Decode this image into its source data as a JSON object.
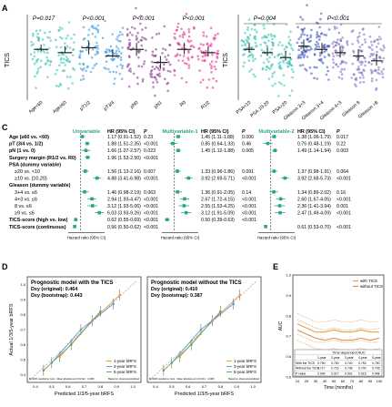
{
  "panel_letters": {
    "a": "A",
    "c": "C",
    "d": "D",
    "e": "E"
  },
  "panelA": {
    "left": {
      "ylabel": "TICS",
      "pvalues": [
        "P=0.017",
        "P<0.001",
        "P<0.001",
        "P<0.001"
      ],
      "groups": [
        {
          "label": "Age<60",
          "color": "#2bbdb0",
          "values": [
            0.25,
            0.3,
            0.45
          ]
        },
        {
          "label": "Age≥60",
          "color": "#2bbdb0",
          "values": [
            0.2,
            0.2,
            0.4
          ]
        },
        {
          "label": "pT1/2",
          "color": "#2d8fd8",
          "values": [
            0.15,
            0.35,
            0.55
          ]
        },
        {
          "label": "pT3/4",
          "color": "#2d8fd8",
          "values": [
            0.05,
            0.1,
            0.3
          ]
        },
        {
          "label": "pN0",
          "color": "#7b2a86",
          "values": [
            0.1,
            0.3,
            0.5
          ]
        },
        {
          "label": "pN1",
          "color": "#7b2a86",
          "values": [
            -0.3,
            -0.1,
            0.1
          ]
        },
        {
          "label": "R0",
          "color": "#e0208a",
          "values": [
            0.15,
            0.3,
            0.5
          ]
        },
        {
          "label": "R1/2",
          "color": "#e0208a",
          "values": [
            0.1,
            0.2,
            0.4
          ]
        }
      ]
    },
    "right": {
      "ylabel": "TICS",
      "pvalues": [
        "P=0.004",
        "P<0.001"
      ],
      "groups": [
        {
          "label": "PSA<10",
          "color": "#2bbdb0",
          "values": [
            0.2,
            0.3,
            0.5
          ]
        },
        {
          "label": "PSA 10-20",
          "color": "#2bbdb0",
          "values": [
            0.1,
            0.2,
            0.35
          ]
        },
        {
          "label": "PSA>20",
          "color": "#2bbdb0",
          "values": [
            -0.05,
            0.05,
            0.25
          ]
        },
        {
          "label": "Gleason 3+3",
          "color": "#3048b8",
          "values": [
            0.25,
            0.4,
            0.6
          ]
        },
        {
          "label": "Gleason 3+4",
          "color": "#3048b8",
          "values": [
            0.15,
            0.3,
            0.5
          ]
        },
        {
          "label": "Gleason 4+3",
          "color": "#7a62c0",
          "values": [
            0.05,
            0.2,
            0.4
          ]
        },
        {
          "label": "Gleason 8",
          "color": "#7a62c0",
          "values": [
            -0.05,
            0.1,
            0.3
          ]
        },
        {
          "label": "Gleason >8",
          "color": "#7a62c0",
          "values": [
            -0.2,
            -0.05,
            0.15
          ]
        }
      ]
    }
  },
  "panelC": {
    "variables": [
      {
        "label": "Age (≥60 vs. <60)",
        "bold": true,
        "indent": false
      },
      {
        "label": "pT (3/4 vs. 1/2)",
        "bold": true,
        "indent": false
      },
      {
        "label": "pN (1 vs. 0)",
        "bold": true,
        "indent": false
      },
      {
        "label": "Surgery margin (R1/2 vs. R0)",
        "bold": true,
        "indent": false
      },
      {
        "label": "PSA (dummy variable)",
        "bold": true,
        "indent": false
      },
      {
        "label": "≥20 vs. <10",
        "bold": false,
        "indent": true
      },
      {
        "label": "≥10 vs. [10,20)",
        "bold": false,
        "indent": true
      },
      {
        "label": "Gleason (dummy variable)",
        "bold": true,
        "indent": false
      },
      {
        "label": "3+4 vs. ≤6",
        "bold": false,
        "indent": true
      },
      {
        "label": "4+3 vs. ≤6",
        "bold": false,
        "indent": true
      },
      {
        "label": "8 vs. ≤6",
        "bold": false,
        "indent": true
      },
      {
        "label": "≥9 vs. ≤6",
        "bold": false,
        "indent": true
      },
      {
        "label": "TICS-score (high vs. low)",
        "bold": true,
        "indent": false
      },
      {
        "label": "TICS-score (continuous)",
        "bold": true,
        "indent": false
      }
    ],
    "models": [
      {
        "title": "Univariable",
        "color": "#2aa58a",
        "hr_header": "HR (95% CI)",
        "p_header": "P",
        "axis_label": "Hazard ratio (95% CI)",
        "rows": [
          {
            "hr": "1.17 (0.91-1.52)",
            "p": "0.23",
            "est": 1.17,
            "lo": 0.91,
            "hi": 1.52
          },
          {
            "hr": "1.88 (1.51-2.35)",
            "p": "<0.001",
            "est": 1.88,
            "lo": 1.51,
            "hi": 2.35
          },
          {
            "hr": "1.66 (1.07-2.57)",
            "p": "0.023",
            "est": 1.66,
            "lo": 1.07,
            "hi": 2.57
          },
          {
            "hr": "1.96 (1.53-2.50)",
            "p": "<0.001",
            "est": 1.96,
            "lo": 1.53,
            "hi": 2.5
          },
          null,
          {
            "hr": "1.56 (1.13-2.16)",
            "p": "0.007",
            "est": 1.56,
            "lo": 1.13,
            "hi": 2.16
          },
          {
            "hr": "4.88 (3.41-6.98)",
            "p": "<0.001",
            "est": 4.88,
            "lo": 3.41,
            "hi": 6.98
          },
          null,
          {
            "hr": "1.46 (0.98-2.19)",
            "p": "0.063",
            "est": 1.46,
            "lo": 0.98,
            "hi": 2.19
          },
          {
            "hr": "2.94 (1.93-4.47)",
            "p": "<0.001",
            "est": 2.94,
            "lo": 1.93,
            "hi": 4.47
          },
          {
            "hr": "3.12 (1.93-5.06)",
            "p": "<0.001",
            "est": 3.12,
            "lo": 1.93,
            "hi": 5.06
          },
          {
            "hr": "6.03 (3.93-9.26)",
            "p": "<0.001",
            "est": 6.03,
            "lo": 3.93,
            "hi": 9.26
          },
          {
            "hr": "0.62 (0.55-0.69)",
            "p": "<0.001",
            "est": 0.62,
            "lo": 0.55,
            "hi": 0.69
          },
          {
            "hr": "0.56 (0.50-0.62)",
            "p": "<0.001",
            "est": 0.56,
            "lo": 0.5,
            "hi": 0.62
          }
        ]
      },
      {
        "title": "Multivariable-1",
        "color": "#2aa58a",
        "hr_header": "HR (95% CI)",
        "p_header": "P",
        "axis_label": "Hazard ratio (95% CI)",
        "rows": [
          {
            "hr": "1.45 (1.11-1.88)",
            "p": "0.006",
            "est": 1.45,
            "lo": 1.11,
            "hi": 1.88
          },
          {
            "hr": "0.85 (0.64-1.33)",
            "p": "0.46",
            "est": 0.85,
            "lo": 0.64,
            "hi": 1.33
          },
          {
            "hr": "1.45 (1.12-1.88)",
            "p": "0.005",
            "est": 1.45,
            "lo": 1.12,
            "hi": 1.88
          },
          null,
          null,
          {
            "hr": "1.33 (0.96-1.86)",
            "p": "0.091",
            "est": 1.33,
            "lo": 0.96,
            "hi": 1.86
          },
          {
            "hr": "3.92 (2.69-5.71)",
            "p": "<0.001",
            "est": 3.92,
            "lo": 2.69,
            "hi": 5.71
          },
          null,
          {
            "hr": "1.36 (0.91-2.05)",
            "p": "0.14",
            "est": 1.36,
            "lo": 0.91,
            "hi": 2.05
          },
          {
            "hr": "2.67 (1.72-4.15)",
            "p": "<0.001",
            "est": 2.67,
            "lo": 1.72,
            "hi": 4.15
          },
          {
            "hr": "2.55 (1.53-4.25)",
            "p": "<0.001",
            "est": 2.55,
            "lo": 1.53,
            "hi": 4.25
          },
          {
            "hr": "3.12 (1.91-5.09)",
            "p": "<0.001",
            "est": 3.12,
            "lo": 1.91,
            "hi": 5.09
          },
          {
            "hr": "0.50 (0.39-0.63)",
            "p": "<0.001",
            "est": 0.5,
            "lo": 0.39,
            "hi": 0.63
          },
          null
        ]
      },
      {
        "title": "Multivariable-2",
        "color": "#2aa58a",
        "hr_header": "HR (95% CI)",
        "p_header": "P",
        "axis_label": "Hazard ratio (95% CI)",
        "rows": [
          {
            "hr": "1.38 (1.06-1.79)",
            "p": "0.017",
            "est": 1.38,
            "lo": 1.06,
            "hi": 1.79
          },
          {
            "hr": "0.75 (0.48-1.19)",
            "p": "0.22",
            "est": 0.75,
            "lo": 0.48,
            "hi": 1.19
          },
          {
            "hr": "1.49 (1.14-1.94)",
            "p": "0.003",
            "est": 1.49,
            "lo": 1.14,
            "hi": 1.94
          },
          null,
          null,
          {
            "hr": "1.37 (0.98-1.91)",
            "p": "0.064",
            "est": 1.37,
            "lo": 0.98,
            "hi": 1.91
          },
          {
            "hr": "3.92 (2.68-5.73)",
            "p": "<0.001",
            "est": 3.92,
            "lo": 2.68,
            "hi": 5.73
          },
          null,
          {
            "hr": "1.34 (0.89-2.02)",
            "p": "0.16",
            "est": 1.34,
            "lo": 0.89,
            "hi": 2.02
          },
          {
            "hr": "2.60 (1.67-4.05)",
            "p": "<0.001",
            "est": 2.6,
            "lo": 1.67,
            "hi": 4.05
          },
          {
            "hr": "2.36 (1.41-3.94)",
            "p": "0.001",
            "est": 2.36,
            "lo": 1.41,
            "hi": 3.94
          },
          {
            "hr": "2.47 (1.49-4.09)",
            "p": "<0.001",
            "est": 2.47,
            "lo": 1.49,
            "hi": 4.09
          },
          null,
          {
            "hr": "0.61 (0.53-0.70)",
            "p": "<0.001",
            "est": 0.61,
            "lo": 0.53,
            "hi": 0.7
          }
        ]
      }
    ]
  },
  "panelD": {
    "ylabel": "Actual 1/3/5-year bRFS",
    "xlabel": "Predicted 1/3/5-year bRFS",
    "ticks": [
      "0.4",
      "0.5",
      "0.6",
      "0.7",
      "0.8",
      "0.9",
      "1.0"
    ],
    "plots": [
      {
        "title": "Prognostic model with the TICS",
        "line1": "Dxy (original): 0.464",
        "line2": "Dxy (bootstrap): 0.443",
        "legend": [
          "1-year bRFS",
          "3-year bRFS",
          "5-year bRFS"
        ],
        "footer_left": "B=1000 repetitions, boot · Mean absolute error=0.012 · n=480",
        "footer_right": "Based on observed-predicted"
      },
      {
        "title": "Prognostic model without the TICS",
        "line1": "Dxy (original): 0.410",
        "line2": "Dxy (bootstrap): 0.387",
        "legend": [
          "1-year bRFS",
          "3-year bRFS",
          "5-year bRFS"
        ],
        "footer_left": "B=1000 repetitions, boot · Mean absolute error=0.014 · n=480",
        "footer_right": "Based on observed-predicted"
      }
    ]
  },
  "panelE": {
    "ylabel": "AUC",
    "xlabel": "Time (months)",
    "yticks": [
      "0.5",
      "0.6",
      "0.7",
      "0.8",
      "0.9",
      "1.0"
    ],
    "xticks": [
      "10",
      "20",
      "30",
      "40",
      "50",
      "60",
      "70",
      "80",
      "90",
      "100"
    ],
    "legend": [
      {
        "label": "with TICS",
        "color": "#e8a23c"
      },
      {
        "label": "without TICS",
        "color": "#c99a5a"
      }
    ],
    "chart_data": {
      "type": "line",
      "x": [
        10,
        20,
        30,
        40,
        50,
        60,
        70,
        80,
        90,
        100
      ],
      "series": [
        {
          "name": "with TICS",
          "values": [
            0.76,
            0.74,
            0.72,
            0.72,
            0.73,
            0.72,
            0.72,
            0.73,
            0.72,
            0.72
          ]
        },
        {
          "name": "without TICS",
          "values": [
            0.73,
            0.71,
            0.69,
            0.68,
            0.69,
            0.68,
            0.68,
            0.69,
            0.68,
            0.69
          ]
        }
      ],
      "ylim": [
        0.5,
        1.0
      ],
      "xlim": [
        5,
        105
      ]
    },
    "table": {
      "title": "Time-dependent AUC",
      "header": [
        "",
        "1-year",
        "2-year",
        "3-year",
        "4-year",
        "5-year"
      ],
      "rows": [
        [
          "With the TICS",
          "0.750",
          "0.750",
          "0.740",
          "0.753",
          "0.750"
        ],
        [
          "Without the TICS",
          "0.717",
          "0.716",
          "0.708",
          "0.700",
          "0.705"
        ],
        [
          "P value",
          "0.004",
          "0.017",
          "0.001",
          "0.015",
          "0.048"
        ]
      ]
    }
  }
}
